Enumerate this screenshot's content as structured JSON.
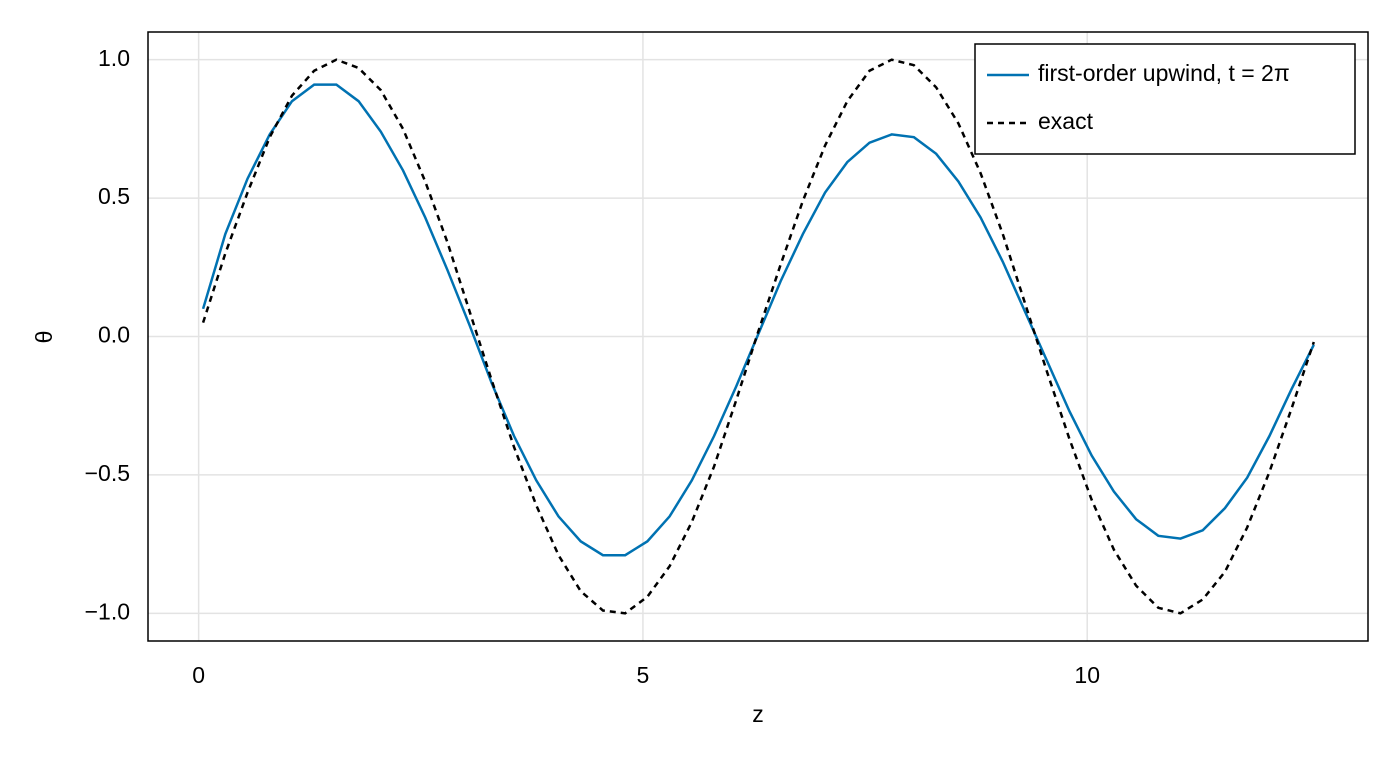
{
  "chart_data": {
    "type": "line",
    "xlabel": "z",
    "ylabel": "θ",
    "x": [
      0.05,
      0.3,
      0.55,
      0.8,
      1.05,
      1.3,
      1.55,
      1.8,
      2.05,
      2.3,
      2.55,
      2.8,
      3.05,
      3.3,
      3.55,
      3.8,
      4.05,
      4.3,
      4.55,
      4.8,
      5.05,
      5.3,
      5.55,
      5.8,
      6.05,
      6.3,
      6.55,
      6.8,
      7.05,
      7.3,
      7.55,
      7.8,
      8.05,
      8.3,
      8.55,
      8.8,
      9.05,
      9.3,
      9.55,
      9.8,
      10.05,
      10.3,
      10.55,
      10.8,
      11.05,
      11.3,
      11.55,
      11.8,
      12.05,
      12.3,
      12.55
    ],
    "series": [
      {
        "name": "first-order upwind, t = 2π",
        "color": "#0072b2",
        "style": "solid",
        "values": [
          0.1,
          0.37,
          0.57,
          0.73,
          0.85,
          0.91,
          0.91,
          0.85,
          0.74,
          0.6,
          0.43,
          0.24,
          0.04,
          -0.17,
          -0.36,
          -0.52,
          -0.65,
          -0.74,
          -0.79,
          -0.79,
          -0.74,
          -0.65,
          -0.52,
          -0.36,
          -0.18,
          0.01,
          0.2,
          0.37,
          0.52,
          0.63,
          0.7,
          0.73,
          0.72,
          0.66,
          0.56,
          0.43,
          0.27,
          0.09,
          -0.09,
          -0.27,
          -0.43,
          -0.56,
          -0.66,
          -0.72,
          -0.73,
          -0.7,
          -0.62,
          -0.51,
          -0.36,
          -0.19,
          -0.03
        ]
      },
      {
        "name": "exact",
        "color": "#000000",
        "style": "dashed",
        "values": [
          0.05,
          0.3,
          0.52,
          0.72,
          0.87,
          0.96,
          1.0,
          0.97,
          0.89,
          0.75,
          0.56,
          0.34,
          0.09,
          -0.16,
          -0.4,
          -0.61,
          -0.79,
          -0.92,
          -0.99,
          -1.0,
          -0.94,
          -0.83,
          -0.67,
          -0.47,
          -0.23,
          0.02,
          0.26,
          0.49,
          0.69,
          0.85,
          0.96,
          1.0,
          0.98,
          0.9,
          0.77,
          0.59,
          0.37,
          0.12,
          -0.13,
          -0.37,
          -0.59,
          -0.77,
          -0.9,
          -0.98,
          -1.0,
          -0.95,
          -0.85,
          -0.69,
          -0.49,
          -0.26,
          -0.02
        ]
      }
    ],
    "xlim": [
      -0.57,
      13.16
    ],
    "ylim": [
      -1.1,
      1.1
    ],
    "xticks": [
      0,
      5,
      10
    ],
    "yticks": [
      {
        "value": -1,
        "label": "−1.0"
      },
      {
        "value": -0.5,
        "label": "−0.5"
      },
      {
        "value": 0,
        "label": "0.0"
      },
      {
        "value": 0.5,
        "label": "0.5"
      },
      {
        "value": 1,
        "label": "1.0"
      }
    ],
    "grid": true,
    "legend": "top-right"
  }
}
